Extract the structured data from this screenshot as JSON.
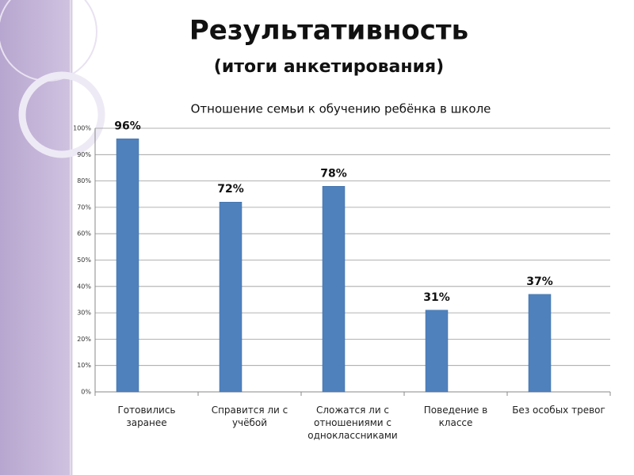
{
  "chart_data": {
    "type": "bar",
    "heading": "Результативность",
    "subheading": "(итоги анкетирования)",
    "title": "Отношение семьи к обучению ребёнка в школе",
    "categories": [
      "Готовились заранее",
      "Справится ли с учёбой",
      "Сложатся ли с отношениями с одноклассниками",
      "Поведение в классе",
      "Без особых тревог"
    ],
    "values": [
      96,
      72,
      78,
      31,
      37
    ],
    "value_labels": [
      "96%",
      "72%",
      "78%",
      "31%",
      "37%"
    ],
    "color": "#4f81bd",
    "ylim": [
      0,
      100
    ],
    "yticks": [
      {
        "value": 0,
        "label": "0%"
      },
      {
        "value": 10,
        "label": "10%"
      },
      {
        "value": 20,
        "label": "20%"
      },
      {
        "value": 30,
        "label": "30%"
      },
      {
        "value": 40,
        "label": "40%"
      },
      {
        "value": 50,
        "label": "50%"
      },
      {
        "value": 60,
        "label": "60%"
      },
      {
        "value": 70,
        "label": "70%"
      },
      {
        "value": 80,
        "label": "80%"
      },
      {
        "value": 90,
        "label": "90%"
      },
      {
        "value": 100,
        "label": "100%"
      }
    ],
    "grid": true
  }
}
